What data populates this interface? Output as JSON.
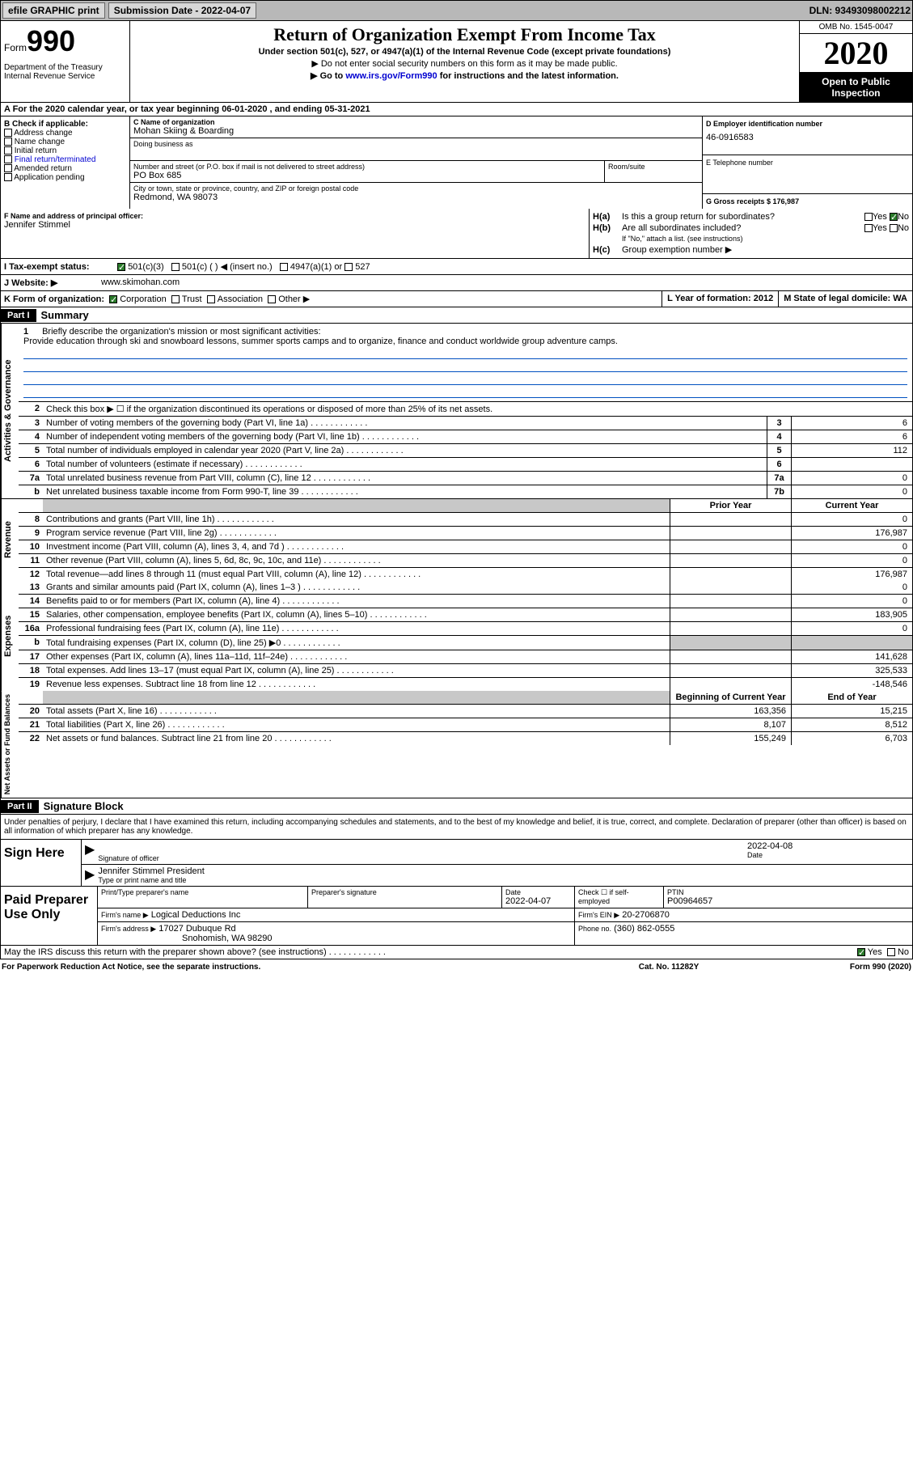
{
  "topbar": {
    "efile": "efile GRAPHIC print",
    "submission_label": "Submission Date - 2022-04-07",
    "dln_label": "DLN: 93493098002212"
  },
  "header": {
    "form_word": "Form",
    "form_num": "990",
    "dept": "Department of the Treasury\nInternal Revenue Service",
    "title": "Return of Organization Exempt From Income Tax",
    "subtitle": "Under section 501(c), 527, or 4947(a)(1) of the Internal Revenue Code (except private foundations)",
    "note1": "▶ Do not enter social security numbers on this form as it may be made public.",
    "note2_pre": "▶ Go to ",
    "note2_link": "www.irs.gov/Form990",
    "note2_post": " for instructions and the latest information.",
    "omb": "OMB No. 1545-0047",
    "year": "2020",
    "open": "Open to Public Inspection"
  },
  "line_a": "A For the 2020 calendar year, or tax year beginning 06-01-2020    , and ending 05-31-2021",
  "col_b": {
    "header": "B Check if applicable:",
    "items": [
      "Address change",
      "Name change",
      "Initial return",
      "Final return/terminated",
      "Amended return",
      "Application pending"
    ]
  },
  "col_c": {
    "c_label": "C Name of organization",
    "org_name": "Mohan Skiing & Boarding",
    "dba_label": "Doing business as",
    "addr_label": "Number and street (or P.O. box if mail is not delivered to street address)",
    "addr": "PO Box 685",
    "room_label": "Room/suite",
    "city_label": "City or town, state or province, country, and ZIP or foreign postal code",
    "city": "Redmond, WA   98073"
  },
  "col_d": {
    "d_label": "D Employer identification number",
    "ein": "46-0916583",
    "e_label": "E Telephone number",
    "g_label": "G Gross receipts $ 176,987"
  },
  "fgh": {
    "f_label": "F  Name and address of principal officer:",
    "f_name": "Jennifer Stimmel",
    "ha_label": "H(a)",
    "ha_text": "Is this a group return for subordinates?",
    "hb_label": "H(b)",
    "hb_text": "Are all subordinates included?",
    "hb_note": "If \"No,\" attach a list. (see instructions)",
    "hc_label": "H(c)",
    "hc_text": "Group exemption number ▶",
    "yes": "Yes",
    "no": "No"
  },
  "row_i": {
    "label": "I   Tax-exempt status:",
    "opt1": "501(c)(3)",
    "opt2": "501(c) (   ) ◀ (insert no.)",
    "opt3": "4947(a)(1) or",
    "opt4": "527"
  },
  "row_j": {
    "label": "J   Website: ▶",
    "val": "www.skimohan.com"
  },
  "row_k": {
    "label": "K Form of organization:",
    "opts": [
      "Corporation",
      "Trust",
      "Association",
      "Other ▶"
    ],
    "l": "L Year of formation: 2012",
    "m": "M State of legal domicile: WA"
  },
  "part1": {
    "tag": "Part I",
    "title": "Summary"
  },
  "mission": {
    "num": "1",
    "label": "Briefly describe the organization's mission or most significant activities:",
    "text": "Provide education through ski and snowboard lessons, summer sports camps and to organize, finance and conduct worldwide group adventure camps."
  },
  "gov_lines": [
    {
      "n": "2",
      "t": "Check this box ▶ ☐  if the organization discontinued its operations or disposed of more than 25% of its net assets.",
      "box": "",
      "v": ""
    },
    {
      "n": "3",
      "t": "Number of voting members of the governing body (Part VI, line 1a)",
      "box": "3",
      "v": "6"
    },
    {
      "n": "4",
      "t": "Number of independent voting members of the governing body (Part VI, line 1b)",
      "box": "4",
      "v": "6"
    },
    {
      "n": "5",
      "t": "Total number of individuals employed in calendar year 2020 (Part V, line 2a)",
      "box": "5",
      "v": "112"
    },
    {
      "n": "6",
      "t": "Total number of volunteers (estimate if necessary)",
      "box": "6",
      "v": ""
    },
    {
      "n": "7a",
      "t": "Total unrelated business revenue from Part VIII, column (C), line 12",
      "box": "7a",
      "v": "0"
    },
    {
      "n": "b",
      "t": "Net unrelated business taxable income from Form 990-T, line 39",
      "box": "7b",
      "v": "0"
    }
  ],
  "col_headers": {
    "prior": "Prior Year",
    "current": "Current Year",
    "bcy": "Beginning of Current Year",
    "eoy": "End of Year"
  },
  "revenue": [
    {
      "n": "8",
      "t": "Contributions and grants (Part VIII, line 1h)",
      "p": "",
      "c": "0"
    },
    {
      "n": "9",
      "t": "Program service revenue (Part VIII, line 2g)",
      "p": "",
      "c": "176,987"
    },
    {
      "n": "10",
      "t": "Investment income (Part VIII, column (A), lines 3, 4, and 7d )",
      "p": "",
      "c": "0"
    },
    {
      "n": "11",
      "t": "Other revenue (Part VIII, column (A), lines 5, 6d, 8c, 9c, 10c, and 11e)",
      "p": "",
      "c": "0"
    },
    {
      "n": "12",
      "t": "Total revenue—add lines 8 through 11 (must equal Part VIII, column (A), line 12)",
      "p": "",
      "c": "176,987"
    }
  ],
  "expenses": [
    {
      "n": "13",
      "t": "Grants and similar amounts paid (Part IX, column (A), lines 1–3 )",
      "p": "",
      "c": "0"
    },
    {
      "n": "14",
      "t": "Benefits paid to or for members (Part IX, column (A), line 4)",
      "p": "",
      "c": "0"
    },
    {
      "n": "15",
      "t": "Salaries, other compensation, employee benefits (Part IX, column (A), lines 5–10)",
      "p": "",
      "c": "183,905"
    },
    {
      "n": "16a",
      "t": "Professional fundraising fees (Part IX, column (A), line 11e)",
      "p": "",
      "c": "0"
    },
    {
      "n": "b",
      "t": "Total fundraising expenses (Part IX, column (D), line 25) ▶0",
      "p": "shaded",
      "c": "shaded"
    },
    {
      "n": "17",
      "t": "Other expenses (Part IX, column (A), lines 11a–11d, 11f–24e)",
      "p": "",
      "c": "141,628"
    },
    {
      "n": "18",
      "t": "Total expenses. Add lines 13–17 (must equal Part IX, column (A), line 25)",
      "p": "",
      "c": "325,533"
    },
    {
      "n": "19",
      "t": "Revenue less expenses. Subtract line 18 from line 12",
      "p": "",
      "c": "-148,546"
    }
  ],
  "netassets": [
    {
      "n": "20",
      "t": "Total assets (Part X, line 16)",
      "p": "163,356",
      "c": "15,215"
    },
    {
      "n": "21",
      "t": "Total liabilities (Part X, line 26)",
      "p": "8,107",
      "c": "8,512"
    },
    {
      "n": "22",
      "t": "Net assets or fund balances. Subtract line 21 from line 20",
      "p": "155,249",
      "c": "6,703"
    }
  ],
  "side_labels": {
    "gov": "Activities & Governance",
    "rev": "Revenue",
    "exp": "Expenses",
    "net": "Net Assets or Fund Balances"
  },
  "part2": {
    "tag": "Part II",
    "title": "Signature Block"
  },
  "sig_decl": "Under penalties of perjury, I declare that I have examined this return, including accompanying schedules and statements, and to the best of my knowledge and belief, it is true, correct, and complete. Declaration of preparer (other than officer) is based on all information of which preparer has any knowledge.",
  "sign_here": "Sign Here",
  "sig": {
    "sig_label": "Signature of officer",
    "date": "2022-04-08",
    "date_label": "Date",
    "name": "Jennifer Stimmel  President",
    "name_label": "Type or print name and title"
  },
  "paid_prep": "Paid Preparer Use Only",
  "prep": {
    "h1": "Print/Type preparer's name",
    "h2": "Preparer's signature",
    "h3": "Date",
    "h3v": "2022-04-07",
    "h4": "Check ☐ if self-employed",
    "h5": "PTIN",
    "h5v": "P00964657",
    "firm_label": "Firm's name   ▶",
    "firm": "Logical Deductions Inc",
    "fein_label": "Firm's EIN ▶",
    "fein": "20-2706870",
    "addr_label": "Firm's address ▶",
    "addr": "17027 Dubuque Rd",
    "addr2": "Snohomish, WA   98290",
    "phone_label": "Phone no.",
    "phone": "(360) 862-0555"
  },
  "irs_discuss": "May the IRS discuss this return with the preparer shown above? (see instructions)",
  "footer": {
    "left": "For Paperwork Reduction Act Notice, see the separate instructions.",
    "mid": "Cat. No. 11282Y",
    "right": "Form 990 (2020)"
  }
}
